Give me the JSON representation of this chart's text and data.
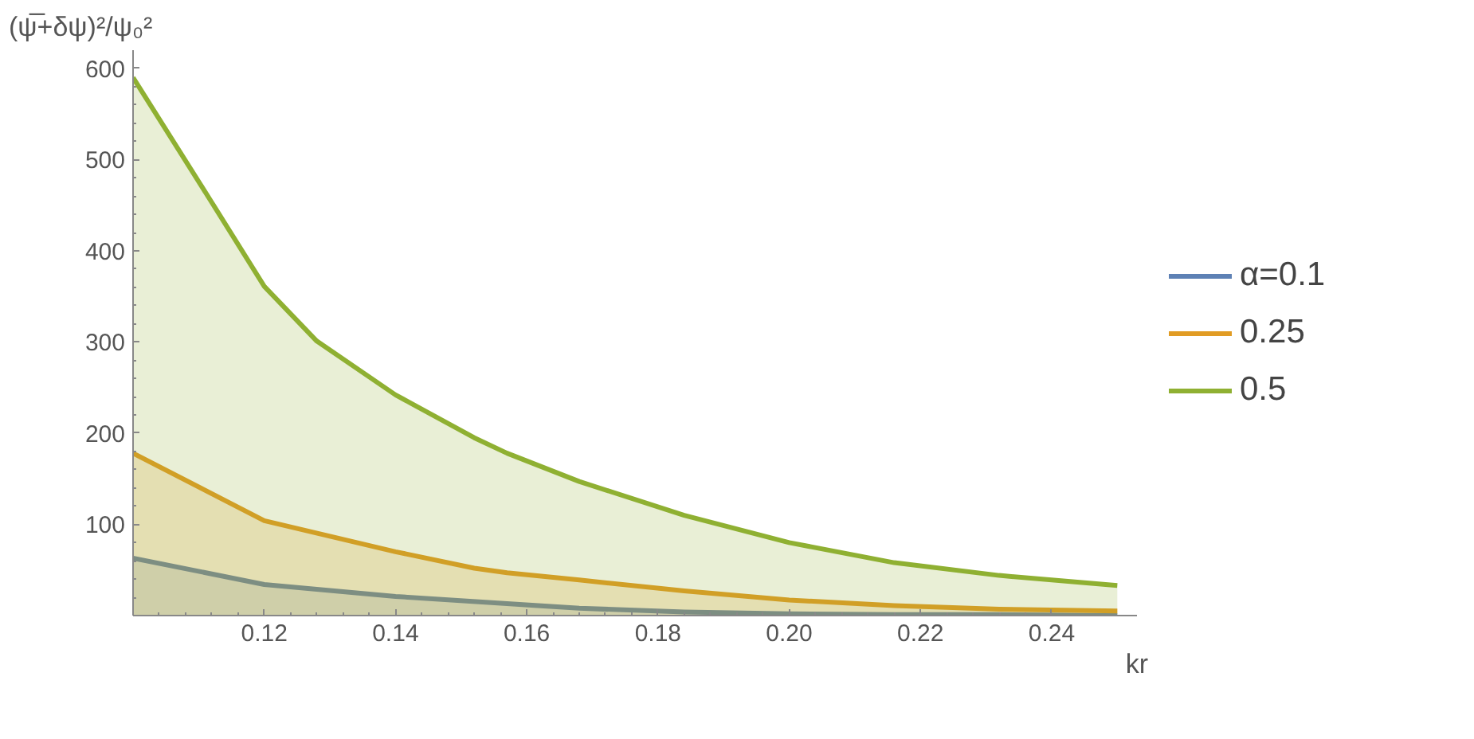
{
  "chart_data": {
    "type": "area",
    "xlabel": "kr",
    "ylabel": "(ψ̅+δψ)²/ψ₀²",
    "xlim": [
      0.1,
      0.253
    ],
    "ylim": [
      0,
      620
    ],
    "xticks": [
      {
        "value": 0.1,
        "label": null
      },
      {
        "value": 0.12,
        "label": "0.12"
      },
      {
        "value": 0.14,
        "label": "0.14"
      },
      {
        "value": 0.16,
        "label": "0.16"
      },
      {
        "value": 0.18,
        "label": "0.18"
      },
      {
        "value": 0.2,
        "label": "0.20"
      },
      {
        "value": 0.22,
        "label": "0.22"
      },
      {
        "value": 0.24,
        "label": "0.24"
      }
    ],
    "yticks": [
      {
        "value": 0,
        "label": null
      },
      100,
      200,
      300,
      400,
      500,
      600
    ],
    "grid": false,
    "legend": "right",
    "line_style": "solid",
    "marker": "none",
    "series": [
      {
        "name": "α=0.1",
        "color": "#5e81b5",
        "x": [
          0.1,
          0.12,
          0.14,
          0.157,
          0.168,
          0.184,
          0.2,
          0.216,
          0.232,
          0.25
        ],
        "values": [
          63,
          34,
          21,
          13,
          8,
          4,
          2,
          1,
          1,
          0
        ]
      },
      {
        "name": "0.25",
        "color": "#e19c24",
        "x": [
          0.1,
          0.12,
          0.14,
          0.152,
          0.157,
          0.168,
          0.184,
          0.2,
          0.216,
          0.232,
          0.25
        ],
        "values": [
          178,
          104,
          70,
          52,
          47,
          39,
          27,
          17,
          11,
          7,
          5
        ]
      },
      {
        "name": "0.5",
        "color": "#8fb032",
        "x": [
          0.1,
          0.112,
          0.12,
          0.128,
          0.14,
          0.152,
          0.157,
          0.168,
          0.184,
          0.2,
          0.216,
          0.232,
          0.25
        ],
        "values": [
          590,
          453,
          361,
          301,
          242,
          195,
          178,
          147,
          110,
          80,
          58,
          44,
          33
        ]
      }
    ]
  }
}
